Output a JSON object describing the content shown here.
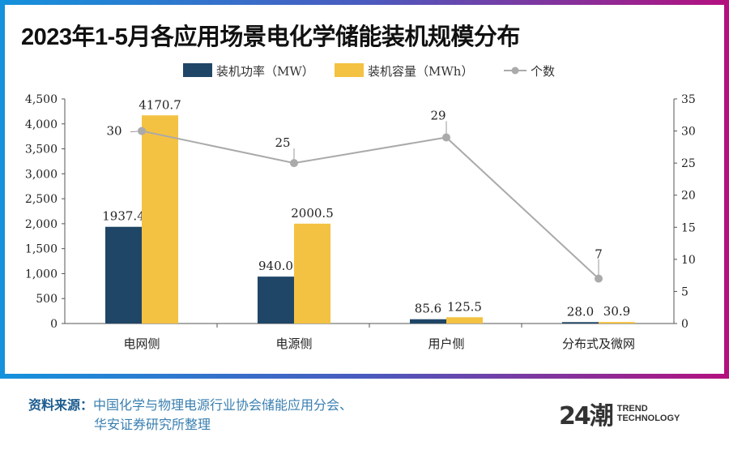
{
  "title": "2023年1-5月各应用场景电化学储能装机规模分布",
  "source": {
    "label": "资料来源：",
    "line1": "中国化学与物理电源行业协会储能应用分会、",
    "line2": "华安证券研究所整理"
  },
  "logo": {
    "mark": "24潮",
    "line1": "TREND",
    "line2": "TECHNOLOGY"
  },
  "colors": {
    "power": "#1f4666",
    "capacity": "#f4c242",
    "count": "#aaaaaa"
  },
  "chart_data": {
    "type": "bar+line",
    "categories": [
      "电网侧",
      "电源侧",
      "用户侧",
      "分布式及微网"
    ],
    "series": [
      {
        "name": "装机功率（MW）",
        "type": "bar",
        "axis": "left",
        "values": [
          1937.4,
          940.0,
          85.6,
          28.0
        ],
        "labels": [
          "1937.4",
          "940.0",
          "85.6",
          "28.0"
        ]
      },
      {
        "name": "装机容量（MWh）",
        "type": "bar",
        "axis": "left",
        "values": [
          4170.7,
          2000.5,
          125.5,
          30.9
        ],
        "labels": [
          "4170.7",
          "2000.5",
          "125.5",
          "30.9"
        ]
      },
      {
        "name": "个数",
        "type": "line",
        "axis": "right",
        "values": [
          30,
          25,
          29,
          7
        ],
        "labels": [
          "30",
          "25",
          "29",
          "7"
        ]
      }
    ],
    "y_left": {
      "range": [
        0,
        4500
      ],
      "ticks": [
        "0",
        "500",
        "1,000",
        "1,500",
        "2,000",
        "2,500",
        "3,000",
        "3,500",
        "4,000",
        "4,500"
      ]
    },
    "y_right": {
      "range": [
        0,
        35
      ],
      "ticks": [
        "0",
        "5",
        "10",
        "15",
        "20",
        "25",
        "30",
        "35"
      ]
    },
    "legend": "top-center",
    "grid": false
  }
}
